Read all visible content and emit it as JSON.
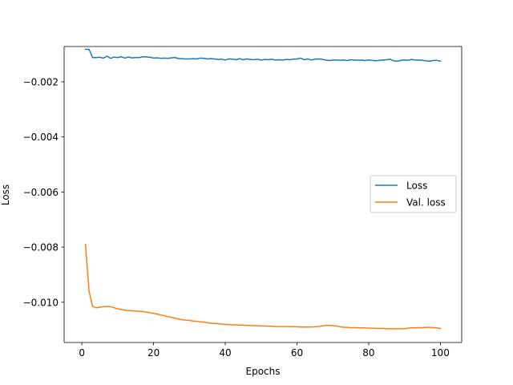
{
  "chart_data": {
    "type": "line",
    "xlabel": "Epochs",
    "ylabel": "Loss",
    "xlim": [
      -4.95,
      105.95
    ],
    "ylim": [
      -0.01146,
      -0.00072
    ],
    "xticks": [
      0,
      20,
      40,
      60,
      80,
      100
    ],
    "yticks": [
      -0.002,
      -0.004,
      -0.006,
      -0.008,
      -0.01
    ],
    "xtick_labels": [
      "0",
      "20",
      "40",
      "60",
      "80",
      "100"
    ],
    "ytick_labels": [
      "−0.002",
      "−0.004",
      "−0.006",
      "−0.008",
      "−0.010"
    ],
    "grid": false,
    "legend_position": "center-right",
    "series": [
      {
        "name": "Loss",
        "color": "#1f77b4",
        "x": [
          1,
          2,
          3,
          4,
          5,
          6,
          7,
          8,
          9,
          10,
          11,
          12,
          13,
          14,
          15,
          16,
          17,
          18,
          19,
          20,
          21,
          22,
          23,
          24,
          25,
          26,
          27,
          28,
          29,
          30,
          31,
          32,
          33,
          34,
          35,
          36,
          37,
          38,
          39,
          40,
          41,
          42,
          43,
          44,
          45,
          46,
          47,
          48,
          49,
          50,
          51,
          52,
          53,
          54,
          55,
          56,
          57,
          58,
          59,
          60,
          61,
          62,
          63,
          64,
          65,
          66,
          67,
          68,
          69,
          70,
          71,
          72,
          73,
          74,
          75,
          76,
          77,
          78,
          79,
          80,
          81,
          82,
          83,
          84,
          85,
          86,
          87,
          88,
          89,
          90,
          91,
          92,
          93,
          94,
          95,
          96,
          97,
          98,
          99,
          100
        ],
        "y": [
          -0.00082,
          -0.00082,
          -0.00112,
          -0.00112,
          -0.00111,
          -0.00114,
          -0.00107,
          -0.00115,
          -0.0011,
          -0.00112,
          -0.00109,
          -0.00114,
          -0.0011,
          -0.00113,
          -0.00112,
          -0.00112,
          -0.00109,
          -0.0011,
          -0.00111,
          -0.00114,
          -0.00113,
          -0.00115,
          -0.00114,
          -0.00115,
          -0.00113,
          -0.00112,
          -0.00116,
          -0.00116,
          -0.00117,
          -0.00117,
          -0.00116,
          -0.00117,
          -0.00114,
          -0.00115,
          -0.00117,
          -0.00116,
          -0.00117,
          -0.00119,
          -0.00118,
          -0.00121,
          -0.00117,
          -0.00118,
          -0.0012,
          -0.00116,
          -0.0012,
          -0.00117,
          -0.00119,
          -0.0012,
          -0.00118,
          -0.00121,
          -0.00119,
          -0.0012,
          -0.00118,
          -0.00121,
          -0.0012,
          -0.00121,
          -0.00119,
          -0.0012,
          -0.00118,
          -0.00117,
          -0.00114,
          -0.0012,
          -0.00117,
          -0.00121,
          -0.00118,
          -0.00117,
          -0.00118,
          -0.00121,
          -0.00123,
          -0.00121,
          -0.00121,
          -0.00122,
          -0.00121,
          -0.00123,
          -0.0012,
          -0.00121,
          -0.00122,
          -0.00121,
          -0.00123,
          -0.00121,
          -0.00122,
          -0.00124,
          -0.00122,
          -0.00121,
          -0.0012,
          -0.00118,
          -0.00124,
          -0.00125,
          -0.00122,
          -0.00121,
          -0.00122,
          -0.00119,
          -0.00121,
          -0.00121,
          -0.00122,
          -0.00124,
          -0.00125,
          -0.00123,
          -0.00122,
          -0.00125
        ]
      },
      {
        "name": "Val. loss",
        "color": "#ff7f0e",
        "x": [
          1,
          2,
          3,
          4,
          5,
          6,
          7,
          8,
          9,
          10,
          11,
          12,
          13,
          14,
          15,
          16,
          17,
          18,
          19,
          20,
          21,
          22,
          23,
          24,
          25,
          26,
          27,
          28,
          29,
          30,
          31,
          32,
          33,
          34,
          35,
          36,
          37,
          38,
          39,
          40,
          41,
          42,
          43,
          44,
          45,
          46,
          47,
          48,
          49,
          50,
          51,
          52,
          53,
          54,
          55,
          56,
          57,
          58,
          59,
          60,
          61,
          62,
          63,
          64,
          65,
          66,
          67,
          68,
          69,
          70,
          71,
          72,
          73,
          74,
          75,
          76,
          77,
          78,
          79,
          80,
          81,
          82,
          83,
          84,
          85,
          86,
          87,
          88,
          89,
          90,
          91,
          92,
          93,
          94,
          95,
          96,
          97,
          98,
          99,
          100
        ],
        "y": [
          -0.0079,
          -0.0096,
          -0.01015,
          -0.0102,
          -0.01018,
          -0.01016,
          -0.01015,
          -0.01016,
          -0.0102,
          -0.01024,
          -0.01026,
          -0.01029,
          -0.0103,
          -0.01031,
          -0.01032,
          -0.01033,
          -0.01034,
          -0.01036,
          -0.01038,
          -0.0104,
          -0.01043,
          -0.01046,
          -0.01049,
          -0.01052,
          -0.01055,
          -0.01058,
          -0.01061,
          -0.01063,
          -0.01065,
          -0.01066,
          -0.01068,
          -0.01069,
          -0.01071,
          -0.01072,
          -0.01074,
          -0.01076,
          -0.01077,
          -0.01078,
          -0.01079,
          -0.0108,
          -0.01081,
          -0.01082,
          -0.01082,
          -0.01083,
          -0.01083,
          -0.01084,
          -0.01084,
          -0.01085,
          -0.01085,
          -0.01086,
          -0.01086,
          -0.01087,
          -0.01087,
          -0.01088,
          -0.01088,
          -0.01088,
          -0.01088,
          -0.01088,
          -0.01089,
          -0.01089,
          -0.0109,
          -0.0109,
          -0.0109,
          -0.0109,
          -0.01089,
          -0.01088,
          -0.01086,
          -0.01084,
          -0.01084,
          -0.01085,
          -0.01086,
          -0.01089,
          -0.01091,
          -0.01091,
          -0.01092,
          -0.01092,
          -0.01093,
          -0.01093,
          -0.01093,
          -0.01094,
          -0.01094,
          -0.01095,
          -0.01095,
          -0.01095,
          -0.01096,
          -0.01096,
          -0.01096,
          -0.01096,
          -0.01096,
          -0.01096,
          -0.01094,
          -0.01093,
          -0.01093,
          -0.01092,
          -0.01092,
          -0.01091,
          -0.01091,
          -0.01092,
          -0.01093,
          -0.01095
        ]
      }
    ]
  }
}
